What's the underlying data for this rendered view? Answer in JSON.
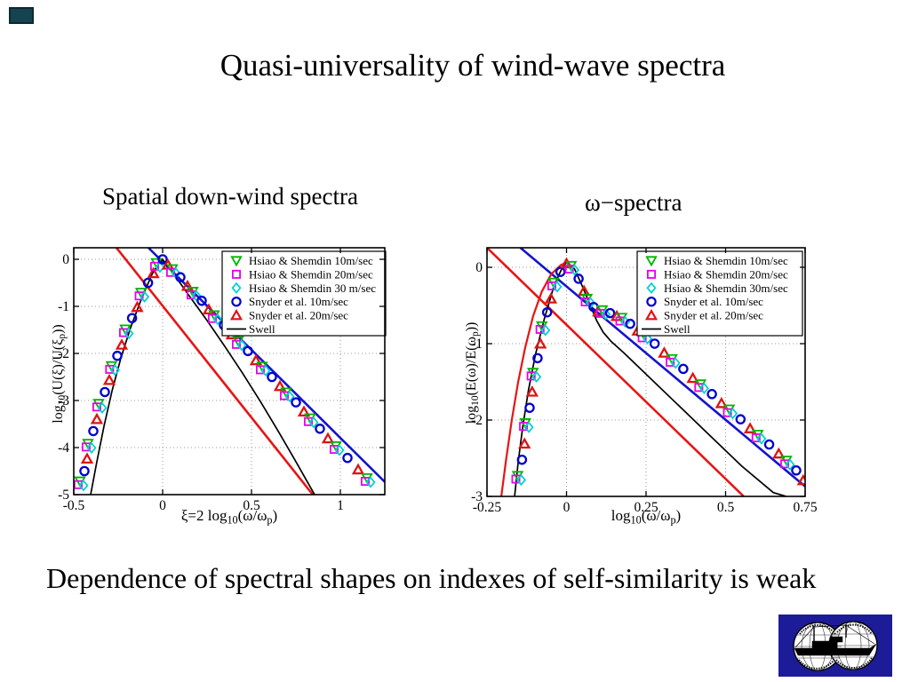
{
  "slide": {
    "title": "Quasi-universality of wind-wave spectra",
    "caption": "Dependence of spectral shapes on indexes of self-similarity is weak"
  },
  "corner_mark": {
    "color": "#16434e"
  },
  "logo": {
    "bg_color": "#1c1c99"
  },
  "chart_data": [
    {
      "type": "scatter",
      "title": "Spatial down-wind spectra",
      "xlabel": "ξ=2 log₁₀(ω/ωₚ)",
      "ylabel": "log₁₀(U(ξ)/U(ξₚ))",
      "xlim": [
        -0.5,
        1.25
      ],
      "ylim": [
        -5,
        0.245
      ],
      "grid": true,
      "legend_position": "top-right",
      "x_ticks": [
        {
          "v": -0.5,
          "label": "-0.5"
        },
        {
          "v": 0,
          "label": "0"
        },
        {
          "v": 0.5,
          "label": "0.5"
        },
        {
          "v": 1,
          "label": "1"
        }
      ],
      "y_ticks": [
        {
          "v": 0,
          "label": "0"
        },
        {
          "v": -1,
          "label": "-1"
        },
        {
          "v": -2,
          "label": "-2"
        },
        {
          "v": -3,
          "label": "-3"
        },
        {
          "v": -4,
          "label": "-4"
        },
        {
          "v": -5,
          "label": "-5"
        }
      ],
      "legend": [
        {
          "label": "Hsiao & Shemdin 10m/sec",
          "marker": "triangle-down",
          "color": "#00b400"
        },
        {
          "label": "Hsiao & Shemdin 20m/sec",
          "marker": "square",
          "color": "#e800e8"
        },
        {
          "label": "Hsiao & Shemdin 30 m/sec",
          "marker": "diamond",
          "color": "#00d2d2"
        },
        {
          "label": "Snyder et al. 10m/sec",
          "marker": "circle",
          "color": "#0000cd"
        },
        {
          "label": "Snyder et al. 20m/sec",
          "marker": "triangle-up",
          "color": "#dc1414"
        },
        {
          "label": "Swell",
          "marker": "line",
          "color": "#000000"
        }
      ],
      "universal_curve": [
        [
          -0.455,
          -4.75
        ],
        [
          -0.44,
          -4.5
        ],
        [
          -0.425,
          -4.22
        ],
        [
          -0.41,
          -3.95
        ],
        [
          -0.39,
          -3.65
        ],
        [
          -0.37,
          -3.38
        ],
        [
          -0.35,
          -3.1
        ],
        [
          -0.325,
          -2.82
        ],
        [
          -0.3,
          -2.55
        ],
        [
          -0.278,
          -2.3
        ],
        [
          -0.255,
          -2.05
        ],
        [
          -0.23,
          -1.8
        ],
        [
          -0.2,
          -1.52
        ],
        [
          -0.172,
          -1.25
        ],
        [
          -0.143,
          -1.0
        ],
        [
          -0.112,
          -0.74
        ],
        [
          -0.082,
          -0.5
        ],
        [
          -0.052,
          -0.28
        ],
        [
          -0.025,
          -0.11
        ],
        [
          0,
          0
        ],
        [
          0.03,
          -0.1
        ],
        [
          0.065,
          -0.24
        ],
        [
          0.1,
          -0.38
        ],
        [
          0.14,
          -0.55
        ],
        [
          0.18,
          -0.72
        ],
        [
          0.22,
          -0.88
        ],
        [
          0.26,
          -1.05
        ],
        [
          0.3,
          -1.22
        ],
        [
          0.345,
          -1.4
        ],
        [
          0.39,
          -1.58
        ],
        [
          0.435,
          -1.77
        ],
        [
          0.48,
          -1.95
        ],
        [
          0.525,
          -2.13
        ],
        [
          0.57,
          -2.31
        ],
        [
          0.615,
          -2.5
        ],
        [
          0.66,
          -2.68
        ],
        [
          0.705,
          -2.86
        ],
        [
          0.75,
          -3.04
        ],
        [
          0.795,
          -3.22
        ],
        [
          0.84,
          -3.41
        ],
        [
          0.885,
          -3.6
        ],
        [
          0.93,
          -3.79
        ],
        [
          0.985,
          -4.0
        ],
        [
          1.04,
          -4.22
        ],
        [
          1.1,
          -4.45
        ],
        [
          1.16,
          -4.68
        ]
      ],
      "lines": [
        {
          "name": "reference-red",
          "color": "#e81414",
          "width": 2.6,
          "points": [
            [
              -0.26,
              0.245
            ],
            [
              0.845,
              -5
            ]
          ]
        },
        {
          "name": "reference-blue",
          "color": "#1414cc",
          "width": 2.6,
          "points": [
            [
              -0.08,
              0.245
            ],
            [
              1.25,
              -4.73
            ]
          ]
        },
        {
          "name": "swell",
          "color": "#000000",
          "width": 1.7,
          "points": [
            [
              -0.405,
              -5
            ],
            [
              -0.37,
              -4.3
            ],
            [
              -0.33,
              -3.55
            ],
            [
              -0.285,
              -2.8
            ],
            [
              -0.235,
              -2.1
            ],
            [
              -0.18,
              -1.45
            ],
            [
              -0.12,
              -0.85
            ],
            [
              -0.06,
              -0.32
            ],
            [
              -0.02,
              -0.08
            ],
            [
              0,
              0
            ],
            [
              0.06,
              -0.3
            ],
            [
              0.15,
              -0.78
            ],
            [
              0.25,
              -1.3
            ],
            [
              0.35,
              -1.85
            ],
            [
              0.45,
              -2.42
            ],
            [
              0.55,
              -3.02
            ],
            [
              0.65,
              -3.65
            ],
            [
              0.75,
              -4.3
            ],
            [
              0.84,
              -4.9
            ],
            [
              0.855,
              -5
            ]
          ]
        }
      ]
    },
    {
      "type": "scatter",
      "title": "ω−spectra",
      "xlabel": "log₁₀(ω/ωₚ)",
      "ylabel": "log₁₀(E(ω)/E(ωₚ))",
      "xlim": [
        -0.25,
        0.75
      ],
      "ylim": [
        -3,
        0.256
      ],
      "grid": true,
      "legend_position": "top-right",
      "x_ticks": [
        {
          "v": -0.25,
          "label": "-0.25"
        },
        {
          "v": 0,
          "label": "0"
        },
        {
          "v": 0.25,
          "label": "0.25"
        },
        {
          "v": 0.5,
          "label": "0.5"
        },
        {
          "v": 0.75,
          "label": "0.75"
        }
      ],
      "y_ticks": [
        {
          "v": 0,
          "label": "0"
        },
        {
          "v": -1,
          "label": "-1"
        },
        {
          "v": -2,
          "label": "-2"
        },
        {
          "v": -3,
          "label": "-3"
        }
      ],
      "legend": [
        {
          "label": "Hsiao & Shemdin 10m/sec",
          "marker": "triangle-down",
          "color": "#00b400"
        },
        {
          "label": "Hsiao & Shemdin 20m/sec",
          "marker": "square",
          "color": "#e800e8"
        },
        {
          "label": "Hsiao & Shemdin 30m/sec",
          "marker": "diamond",
          "color": "#00d2d2"
        },
        {
          "label": "Snyder et al. 10m/sec",
          "marker": "circle",
          "color": "#0000cd"
        },
        {
          "label": "Snyder et al. 20m/sec",
          "marker": "triangle-up",
          "color": "#dc1414"
        },
        {
          "label": "Swell",
          "marker": "line",
          "color": "#000000"
        }
      ],
      "universal_curve": [
        [
          -0.148,
          -2.75
        ],
        [
          -0.14,
          -2.52
        ],
        [
          -0.132,
          -2.3
        ],
        [
          -0.124,
          -2.06
        ],
        [
          -0.116,
          -1.84
        ],
        [
          -0.108,
          -1.62
        ],
        [
          -0.1,
          -1.4
        ],
        [
          -0.091,
          -1.19
        ],
        [
          -0.082,
          -0.99
        ],
        [
          -0.072,
          -0.79
        ],
        [
          -0.061,
          -0.59
        ],
        [
          -0.049,
          -0.4
        ],
        [
          -0.035,
          -0.22
        ],
        [
          -0.019,
          -0.06
        ],
        [
          0,
          0.06
        ],
        [
          0.02,
          0.0
        ],
        [
          0.038,
          -0.15
        ],
        [
          0.055,
          -0.3
        ],
        [
          0.07,
          -0.43
        ],
        [
          0.085,
          -0.52
        ],
        [
          0.1,
          -0.57
        ],
        [
          0.118,
          -0.58
        ],
        [
          0.137,
          -0.6
        ],
        [
          0.158,
          -0.63
        ],
        [
          0.179,
          -0.68
        ],
        [
          0.2,
          -0.74
        ],
        [
          0.224,
          -0.82
        ],
        [
          0.249,
          -0.9
        ],
        [
          0.277,
          -1.0
        ],
        [
          0.307,
          -1.11
        ],
        [
          0.337,
          -1.22
        ],
        [
          0.367,
          -1.33
        ],
        [
          0.397,
          -1.44
        ],
        [
          0.427,
          -1.55
        ],
        [
          0.457,
          -1.66
        ],
        [
          0.487,
          -1.77
        ],
        [
          0.517,
          -1.88
        ],
        [
          0.547,
          -1.99
        ],
        [
          0.577,
          -2.1
        ],
        [
          0.607,
          -2.21
        ],
        [
          0.637,
          -2.32
        ],
        [
          0.667,
          -2.43
        ],
        [
          0.697,
          -2.55
        ],
        [
          0.722,
          -2.66
        ],
        [
          0.744,
          -2.78
        ]
      ],
      "lines": [
        {
          "name": "reference-red",
          "color": "#e81414",
          "width": 2.6,
          "points": [
            [
              -0.25,
              0.256
            ],
            [
              0.557,
              -3
            ]
          ]
        },
        {
          "name": "reference-blue",
          "color": "#1414cc",
          "width": 2.6,
          "points": [
            [
              -0.145,
              0.256
            ],
            [
              0.75,
              -2.87
            ]
          ]
        },
        {
          "name": "parametric-red-curve",
          "color": "#e81414",
          "width": 2.2,
          "points": [
            [
              -0.205,
              -3
            ],
            [
              -0.19,
              -2.52
            ],
            [
              -0.172,
              -2.0
            ],
            [
              -0.152,
              -1.5
            ],
            [
              -0.13,
              -1.05
            ],
            [
              -0.105,
              -0.64
            ],
            [
              -0.078,
              -0.32
            ],
            [
              -0.048,
              -0.09
            ],
            [
              -0.018,
              0.03
            ],
            [
              0.005,
              0.07
            ]
          ]
        },
        {
          "name": "swell",
          "color": "#000000",
          "width": 1.7,
          "points": [
            [
              -0.163,
              -3
            ],
            [
              -0.152,
              -2.55
            ],
            [
              -0.138,
              -2.1
            ],
            [
              -0.12,
              -1.62
            ],
            [
              -0.098,
              -1.15
            ],
            [
              -0.07,
              -0.68
            ],
            [
              -0.04,
              -0.25
            ],
            [
              -0.015,
              -0.02
            ],
            [
              0,
              0.07
            ],
            [
              0.025,
              -0.02
            ],
            [
              0.05,
              -0.25
            ],
            [
              0.075,
              -0.5
            ],
            [
              0.095,
              -0.7
            ],
            [
              0.115,
              -0.85
            ],
            [
              0.14,
              -0.97
            ],
            [
              0.18,
              -1.12
            ],
            [
              0.25,
              -1.4
            ],
            [
              0.35,
              -1.8
            ],
            [
              0.45,
              -2.2
            ],
            [
              0.55,
              -2.6
            ],
            [
              0.65,
              -2.95
            ],
            [
              0.69,
              -3.0
            ]
          ]
        }
      ]
    }
  ]
}
